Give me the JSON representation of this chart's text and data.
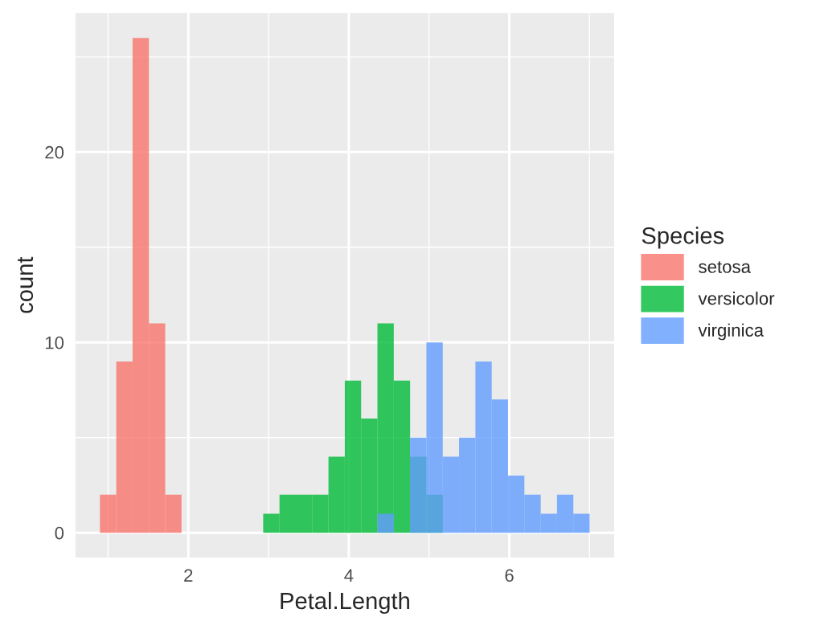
{
  "chart_data": {
    "type": "histogram",
    "xlabel": "Petal.Length",
    "ylabel": "count",
    "legend_title": "Species",
    "bins": [
      0.8983,
      1.1017,
      1.3052,
      1.5086,
      1.7121,
      1.9155,
      2.119,
      2.3224,
      2.5259,
      2.7293,
      2.9328,
      3.1362,
      3.3397,
      3.5431,
      3.7466,
      3.95,
      4.1534,
      4.3569,
      4.5603,
      4.7638,
      4.9672,
      5.1707,
      5.3741,
      5.5776,
      5.781,
      5.9845,
      6.1879,
      6.3914,
      6.5948,
      6.7983,
      7.0017
    ],
    "series": [
      {
        "name": "setosa",
        "color": "#F8766D",
        "values": [
          2,
          9,
          26,
          11,
          2,
          0,
          0,
          0,
          0,
          0,
          0,
          0,
          0,
          0,
          0,
          0,
          0,
          0,
          0,
          0,
          0,
          0,
          0,
          0,
          0,
          0,
          0,
          0,
          0,
          0
        ]
      },
      {
        "name": "versicolor",
        "color": "#00BA38",
        "values": [
          0,
          0,
          0,
          0,
          0,
          0,
          0,
          0,
          0,
          0,
          1,
          2,
          2,
          2,
          4,
          8,
          6,
          11,
          8,
          4,
          2,
          0,
          0,
          0,
          0,
          0,
          0,
          0,
          0,
          0
        ]
      },
      {
        "name": "virginica",
        "color": "#619CFF",
        "values": [
          0,
          0,
          0,
          0,
          0,
          0,
          0,
          0,
          0,
          0,
          0,
          0,
          0,
          0,
          0,
          0,
          0,
          1,
          0,
          5,
          10,
          4,
          5,
          9,
          7,
          3,
          2,
          1,
          2,
          1
        ]
      }
    ],
    "xlim": [
      0.593,
      7.307
    ],
    "xticks": [
      2,
      4,
      6
    ],
    "ylim": [
      -1.3,
      27.3
    ],
    "yticks": [
      0,
      10,
      20
    ],
    "grid": true,
    "legend": "right"
  }
}
